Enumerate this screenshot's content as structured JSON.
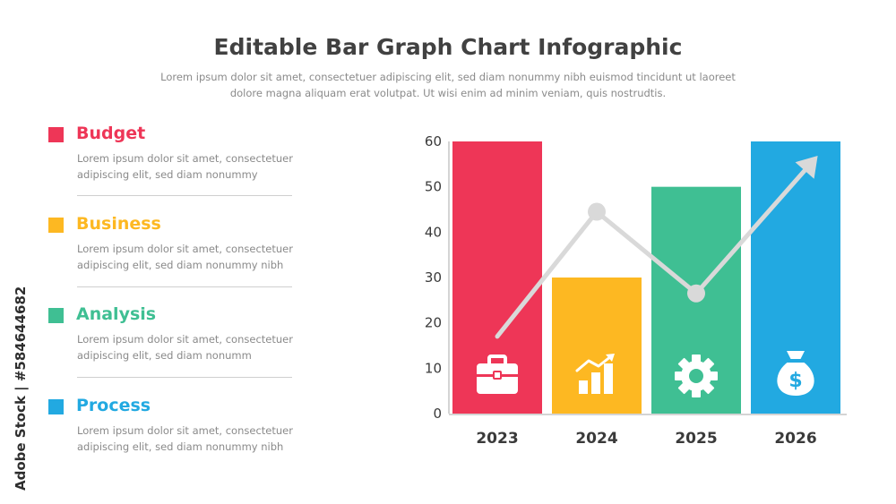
{
  "header": {
    "title": "Editable Bar Graph Chart Infographic",
    "subtitle_line1": "Lorem ipsum dolor sit amet, consectetuer adipiscing elit, sed diam nonummy nibh euismod tincidunt ut laoreet",
    "subtitle_line2": "dolore magna aliquam erat volutpat. Ut wisi enim ad minim veniam, quis nostrudtis."
  },
  "watermark": "Adobe Stock | #584644682",
  "legend_items": [
    {
      "title": "Budget",
      "color": "#ee3657",
      "desc_line1": "Lorem ipsum dolor sit amet, consectetuer",
      "desc_line2": "adipiscing elit, sed diam nonummy"
    },
    {
      "title": "Business",
      "color": "#fdb822",
      "desc_line1": "Lorem ipsum dolor sit amet, consectetuer",
      "desc_line2": "adipiscing elit, sed diam nonummy nibh"
    },
    {
      "title": "Analysis",
      "color": "#3fbf93",
      "desc_line1": "Lorem ipsum dolor sit amet, consectetuer",
      "desc_line2": "adipiscing elit, sed diam nonumm"
    },
    {
      "title": "Process",
      "color": "#22a9e1",
      "desc_line1": "Lorem ipsum dolor sit amet, consectetuer",
      "desc_line2": "adipiscing elit, sed diam nonummy nibh"
    }
  ],
  "chart_data": {
    "type": "bar",
    "categories": [
      "2023",
      "2024",
      "2025",
      "2026"
    ],
    "values": [
      60,
      30,
      50,
      60
    ],
    "colors": [
      "#ee3657",
      "#fdb822",
      "#3fbf93",
      "#22a9e1"
    ],
    "icons": [
      "briefcase-icon",
      "growth-chart-icon",
      "gear-icon",
      "money-bag-icon"
    ],
    "yticks": [
      0,
      10,
      20,
      30,
      40,
      50,
      60
    ],
    "ylim": [
      0,
      60
    ],
    "grid": false,
    "trend_line": {
      "points": [
        {
          "category": "2023",
          "value": 17
        },
        {
          "category": "2024",
          "value": 44.5
        },
        {
          "category": "2025",
          "value": 26.5
        },
        {
          "category": "2026",
          "value": 53
        }
      ],
      "markers_at": [
        "2024",
        "2025"
      ],
      "arrow_end": true,
      "color": "#d9d9d9"
    }
  }
}
